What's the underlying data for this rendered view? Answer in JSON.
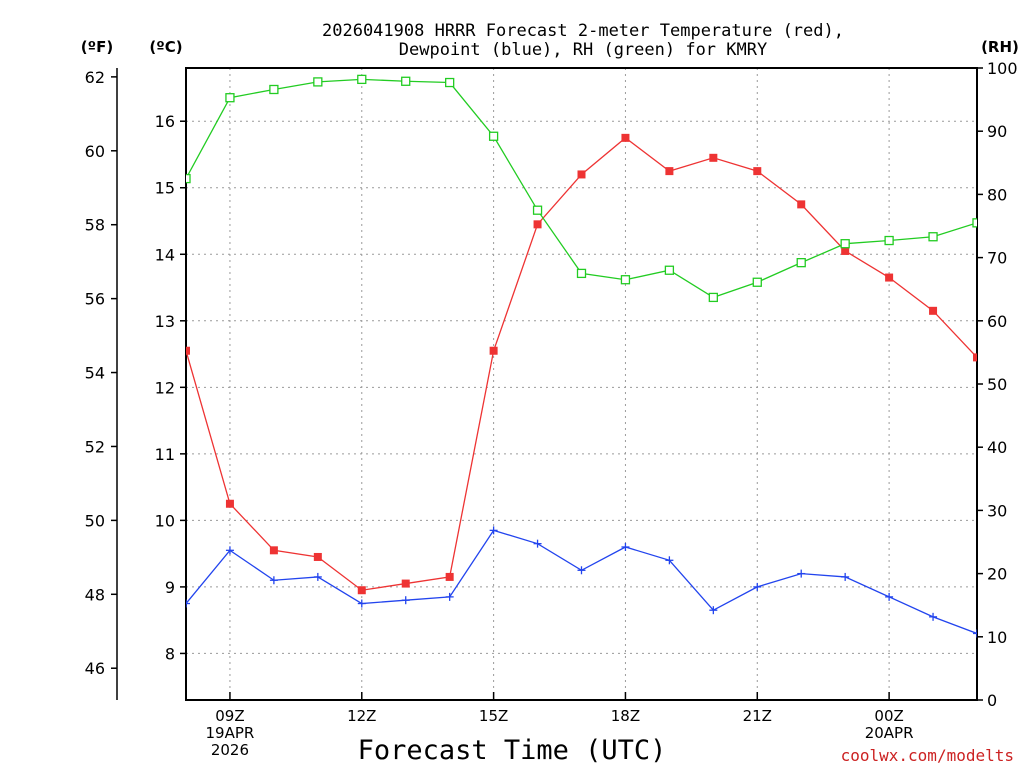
{
  "chart_data": {
    "type": "line",
    "title_line1": "2026041908 HRRR Forecast 2-meter Temperature (red),",
    "title_line2": "Dewpoint (blue), RH (green) for KMRY",
    "left_outer_unit": "(ºF)",
    "left_inner_unit": "(ºC)",
    "right_unit": "(RH)",
    "xlabel": "Forecast Time (UTC)",
    "credit": "coolwx.com/modelts",
    "x_hours": [
      8,
      9,
      10,
      11,
      12,
      13,
      14,
      15,
      16,
      17,
      18,
      19,
      20,
      21,
      22,
      23,
      24,
      25,
      26
    ],
    "xlim": [
      8,
      26
    ],
    "x_ticks": [
      {
        "hour": 9,
        "lines": [
          "09Z",
          "19APR",
          "2026"
        ]
      },
      {
        "hour": 12,
        "lines": [
          "12Z"
        ]
      },
      {
        "hour": 15,
        "lines": [
          "15Z"
        ]
      },
      {
        "hour": 18,
        "lines": [
          "18Z"
        ]
      },
      {
        "hour": 21,
        "lines": [
          "21Z"
        ]
      },
      {
        "hour": 24,
        "lines": [
          "00Z",
          "20APR"
        ]
      }
    ],
    "celsius_axis": {
      "ylim": [
        7.3,
        16.8
      ],
      "ticks": [
        8,
        9,
        10,
        11,
        12,
        13,
        14,
        15,
        16
      ]
    },
    "fahrenheit_axis": {
      "ticks": [
        46,
        48,
        50,
        52,
        54,
        56,
        58,
        60,
        62
      ]
    },
    "rh_axis": {
      "ylim": [
        0,
        100
      ],
      "ticks": [
        0,
        10,
        20,
        30,
        40,
        50,
        60,
        70,
        80,
        90,
        100
      ]
    },
    "series": [
      {
        "name": "Temperature",
        "units": "C",
        "color": "#ee3333",
        "marker": "filled-square",
        "values": [
          12.55,
          10.25,
          9.55,
          9.45,
          8.95,
          9.05,
          9.15,
          12.55,
          14.45,
          15.2,
          15.75,
          15.25,
          15.45,
          15.25,
          14.75,
          14.05,
          13.65,
          13.15,
          12.45
        ]
      },
      {
        "name": "Dewpoint",
        "units": "C",
        "color": "#2244ee",
        "marker": "plus",
        "values": [
          8.75,
          9.55,
          9.1,
          9.15,
          8.75,
          8.8,
          8.85,
          9.85,
          9.65,
          9.25,
          9.6,
          9.4,
          8.65,
          9.0,
          9.2,
          9.15,
          8.85,
          8.55,
          8.3
        ]
      },
      {
        "name": "RH",
        "units": "%",
        "color": "#22cc22",
        "marker": "open-square",
        "values": [
          82.5,
          95.3,
          96.6,
          97.8,
          98.2,
          97.9,
          97.7,
          89.2,
          77.5,
          67.5,
          66.5,
          68.0,
          63.7,
          66.1,
          69.2,
          72.2,
          72.7,
          73.3,
          75.5
        ]
      }
    ]
  }
}
